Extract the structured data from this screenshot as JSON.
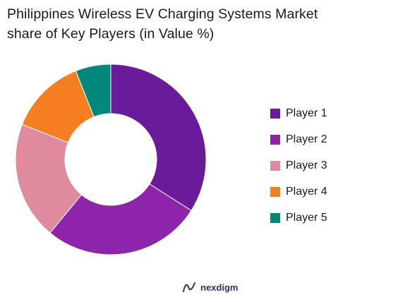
{
  "title_line1": "Philippines Wireless EV Charging Systems Market",
  "title_line2": "share of Key Players (in Value %)",
  "brand": "nexdigm",
  "chart_data": {
    "type": "pie",
    "donut": true,
    "title": "Philippines Wireless EV Charging Systems Market share of Key Players (in Value %)",
    "legend_position": "right",
    "series": [
      {
        "name": "Player 1",
        "value": 34,
        "color": "#6a1b9a"
      },
      {
        "name": "Player 2",
        "value": 27,
        "color": "#8e24aa"
      },
      {
        "name": "Player 3",
        "value": 20,
        "color": "#e08a9e"
      },
      {
        "name": "Player 4",
        "value": 13,
        "color": "#f57f20"
      },
      {
        "name": "Player 5",
        "value": 6,
        "color": "#00897b"
      }
    ]
  }
}
